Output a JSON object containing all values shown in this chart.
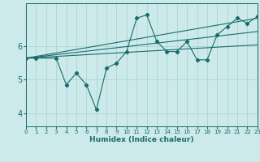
{
  "xlabel": "Humidex (Indice chaleur)",
  "bg_color": "#cceaea",
  "grid_color": "#add4d4",
  "line_color": "#1a6b6b",
  "x_range": [
    0,
    23
  ],
  "y_range": [
    3.6,
    7.3
  ],
  "yticks": [
    4,
    5,
    6
  ],
  "xticks": [
    0,
    1,
    2,
    3,
    4,
    5,
    6,
    7,
    8,
    9,
    10,
    11,
    12,
    13,
    14,
    15,
    16,
    17,
    18,
    19,
    20,
    21,
    22,
    23
  ],
  "series_main": [
    [
      0,
      5.65
    ],
    [
      1,
      5.65
    ],
    [
      3,
      5.65
    ],
    [
      4,
      4.85
    ],
    [
      5,
      5.2
    ],
    [
      6,
      4.85
    ],
    [
      7,
      4.1
    ],
    [
      8,
      5.35
    ],
    [
      9,
      5.5
    ],
    [
      10,
      5.85
    ],
    [
      11,
      6.85
    ],
    [
      12,
      6.95
    ],
    [
      13,
      6.15
    ],
    [
      14,
      5.85
    ],
    [
      15,
      5.85
    ],
    [
      16,
      6.15
    ],
    [
      17,
      5.6
    ],
    [
      18,
      5.6
    ],
    [
      19,
      6.35
    ],
    [
      20,
      6.6
    ],
    [
      21,
      6.85
    ],
    [
      22,
      6.7
    ],
    [
      23,
      6.9
    ]
  ],
  "trend_lines": [
    {
      "start_x": 0,
      "start_y": 5.65,
      "end_x": 23,
      "end_y": 6.05
    },
    {
      "start_x": 0,
      "start_y": 5.65,
      "end_x": 23,
      "end_y": 6.45
    },
    {
      "start_x": 0,
      "start_y": 5.65,
      "end_x": 23,
      "end_y": 6.85
    }
  ]
}
